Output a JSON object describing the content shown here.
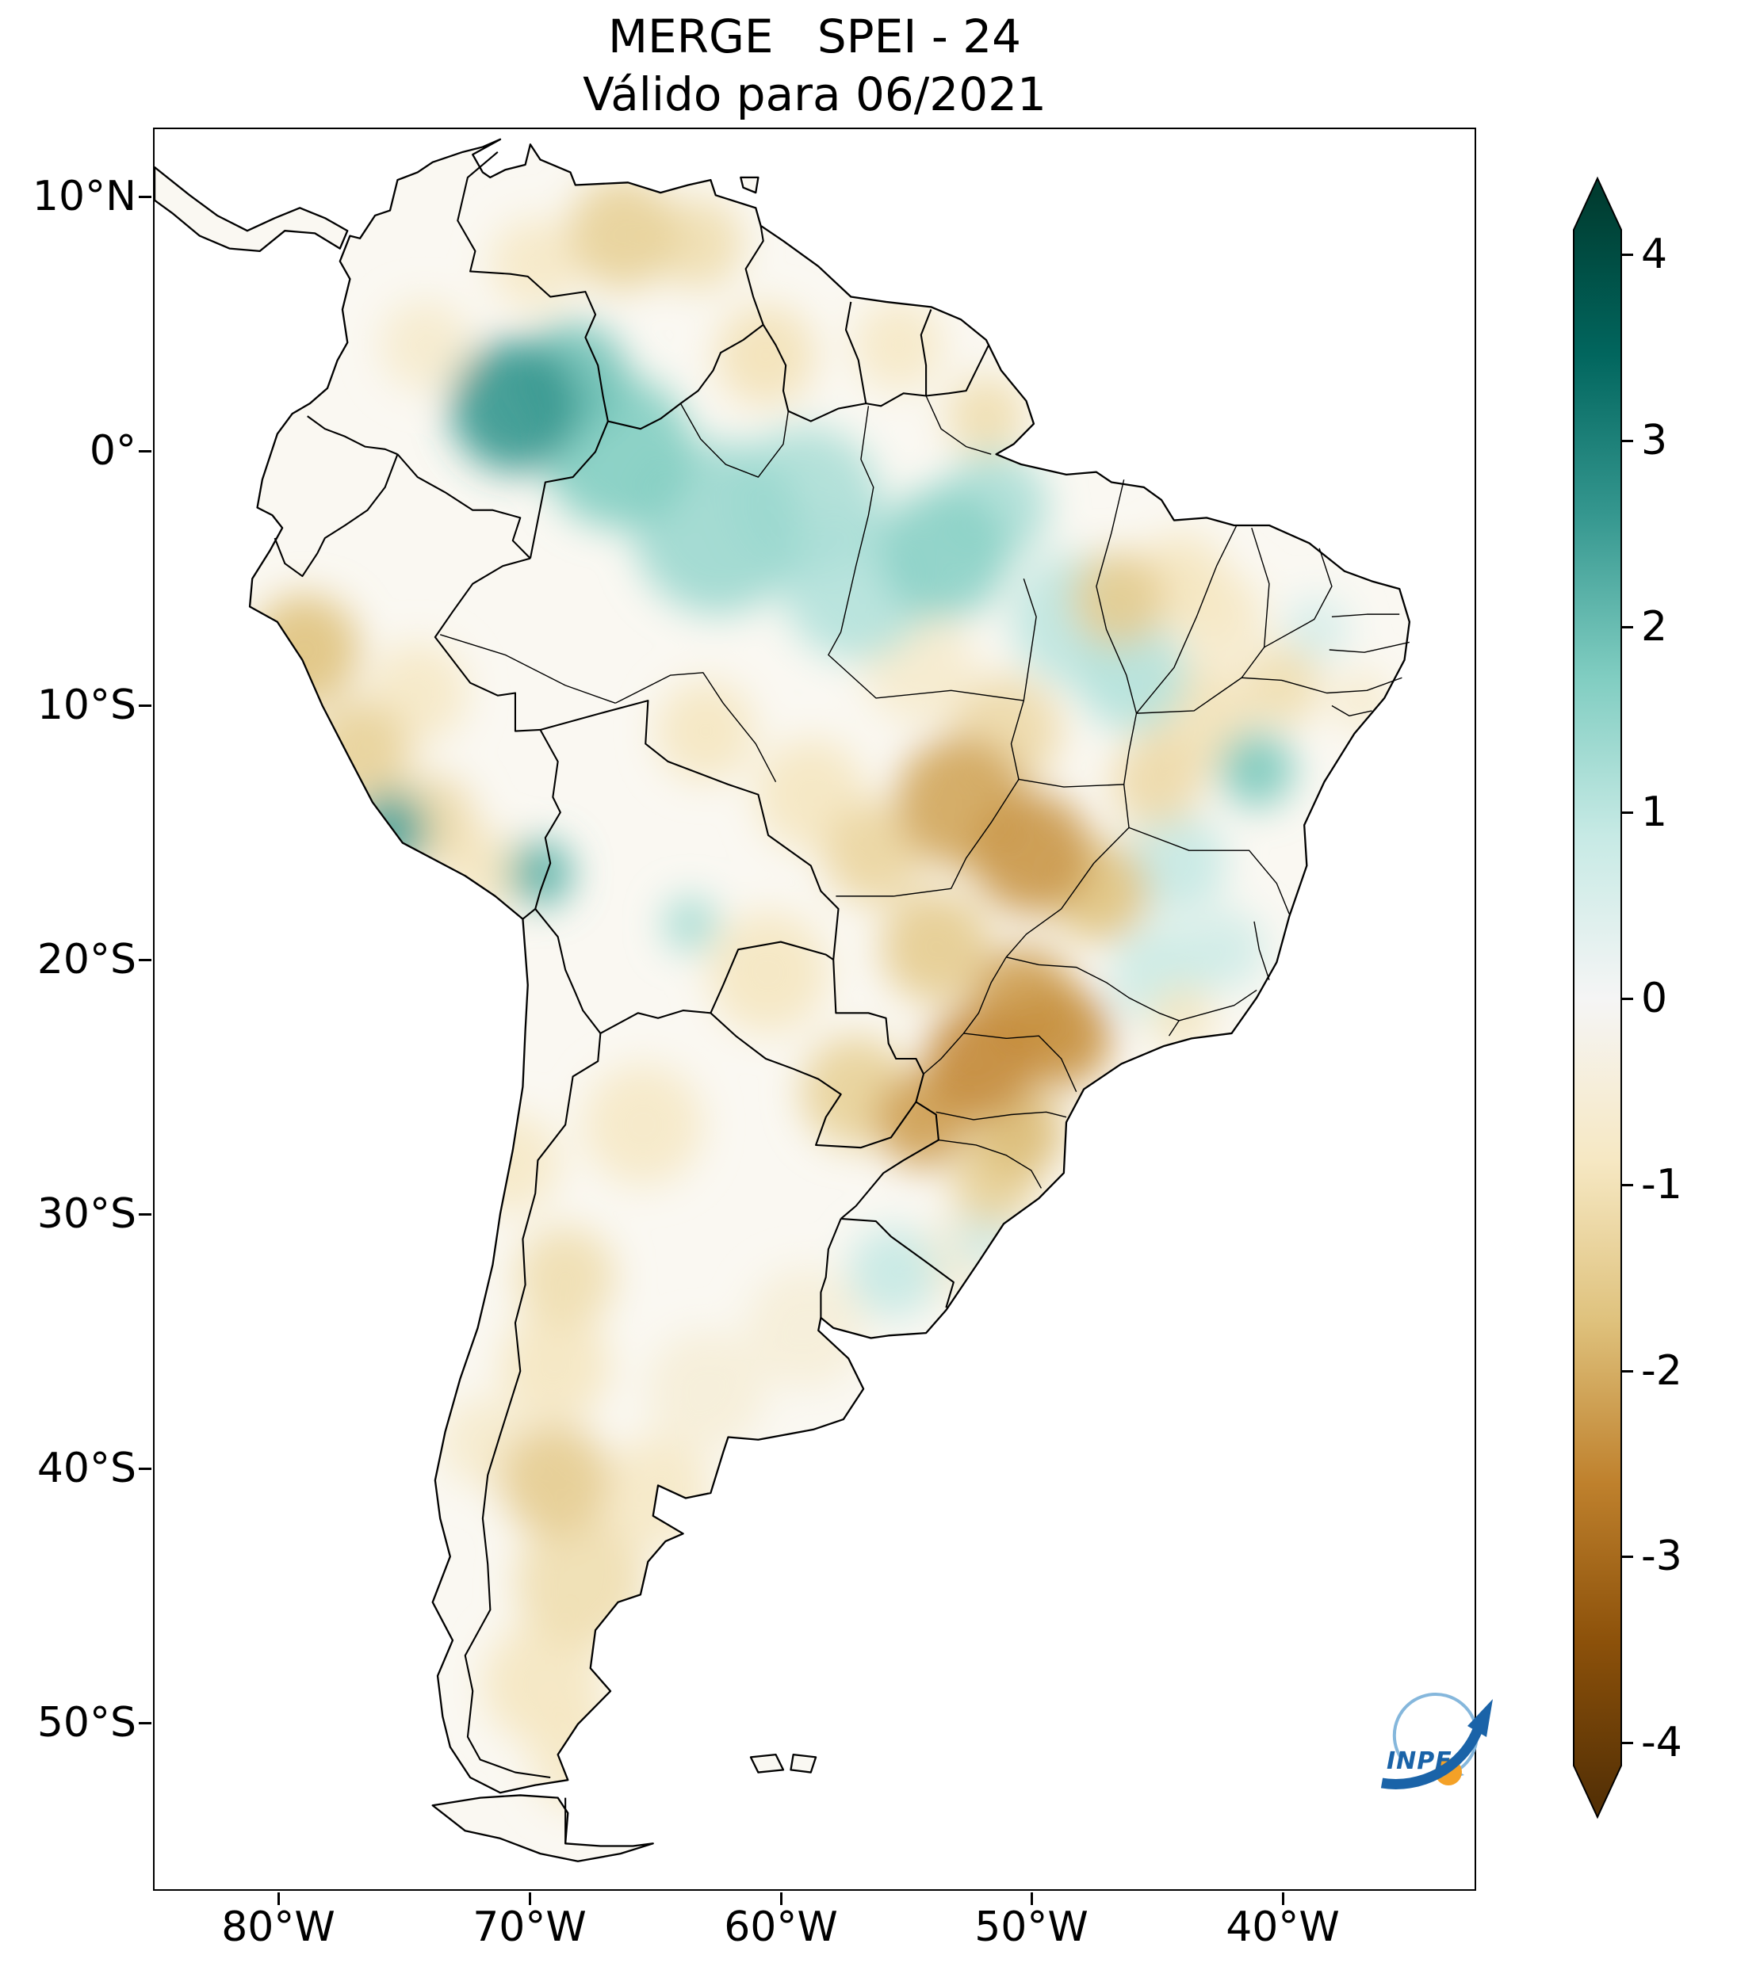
{
  "title": {
    "line1": "MERGE   SPEI - 24",
    "line2": "Válido para 06/2021"
  },
  "axes": {
    "y_ticks": [
      "10°N",
      "0°",
      "10°S",
      "20°S",
      "30°S",
      "40°S",
      "50°S"
    ],
    "x_ticks": [
      "80°W",
      "70°W",
      "60°W",
      "50°W",
      "40°W"
    ]
  },
  "colorbar": {
    "ticks": [
      "4",
      "3",
      "2",
      "1",
      "0",
      "-1",
      "-2",
      "-3",
      "-4"
    ]
  },
  "logo": {
    "text": "INPE"
  },
  "chart_data": {
    "type": "heatmap",
    "title": "MERGE SPEI - 24",
    "subtitle": "Válido para 06/2021",
    "index": "SPEI",
    "timescale_months": 24,
    "valid_for": "06/2021",
    "region": "South America",
    "projection": "equirectangular",
    "extent": {
      "lon_min": -85.0,
      "lon_max": -32.3,
      "lat_min": -56.6,
      "lat_max": 12.7
    },
    "colorbar": {
      "min": -4,
      "max": 4,
      "tick_values": [
        4,
        3,
        2,
        1,
        0,
        -1,
        -2,
        -3,
        -4
      ],
      "extended": true
    },
    "colormap": {
      "name": "BrBG",
      "stops": [
        [
          -4.33,
          "#543005"
        ],
        [
          -3.46,
          "#8c510a"
        ],
        [
          -2.6,
          "#bf812d"
        ],
        [
          -1.73,
          "#dfc27d"
        ],
        [
          -0.87,
          "#f6e8c3"
        ],
        [
          0.0,
          "#f5f5f5"
        ],
        [
          0.87,
          "#c7eae5"
        ],
        [
          1.73,
          "#80cdc1"
        ],
        [
          2.6,
          "#35978f"
        ],
        [
          3.46,
          "#01665e"
        ],
        [
          4.33,
          "#003c30"
        ]
      ]
    },
    "anomalies_format": [
      "lon",
      "lat",
      "spei",
      "radius_deg"
    ],
    "anomalies": [
      [
        -70.6,
        1.8,
        2.6,
        2.6
      ],
      [
        -68.3,
        2.9,
        1.9,
        2.2
      ],
      [
        -66.5,
        0.0,
        1.7,
        3.0
      ],
      [
        -62.5,
        -3.0,
        1.4,
        3.4
      ],
      [
        -59.0,
        -2.0,
        1.2,
        3.0
      ],
      [
        -57.0,
        -5.2,
        1.1,
        3.0
      ],
      [
        -53.5,
        -4.0,
        1.6,
        2.6
      ],
      [
        -51.5,
        -2.2,
        1.2,
        2.2
      ],
      [
        -48.2,
        -6.6,
        1.0,
        2.6
      ],
      [
        -46.0,
        -8.8,
        1.1,
        2.2
      ],
      [
        -44.2,
        -16.2,
        0.9,
        2.0
      ],
      [
        -41.0,
        -12.5,
        1.8,
        1.5
      ],
      [
        -75.6,
        -14.9,
        2.4,
        1.5
      ],
      [
        -69.6,
        -16.6,
        2.2,
        1.3
      ],
      [
        -63.6,
        -18.6,
        1.3,
        1.1
      ],
      [
        -44.8,
        -20.6,
        0.8,
        2.0
      ],
      [
        -42.2,
        -19.6,
        0.7,
        1.6
      ],
      [
        -55.5,
        -32.3,
        0.9,
        1.8
      ],
      [
        -51.8,
        -30.9,
        0.7,
        1.3
      ],
      [
        -38.6,
        -7.0,
        0.6,
        1.3
      ],
      [
        -79.0,
        -7.8,
        -1.7,
        2.2
      ],
      [
        -76.8,
        -11.8,
        -1.4,
        2.0
      ],
      [
        -74.0,
        -14.5,
        -1.2,
        1.8
      ],
      [
        -71.8,
        -16.5,
        -0.9,
        1.6
      ],
      [
        -74.5,
        -9.5,
        -0.8,
        2.0
      ],
      [
        -66.3,
        8.6,
        -1.4,
        2.2
      ],
      [
        -63.3,
        8.2,
        -1.1,
        1.8
      ],
      [
        -69.8,
        7.4,
        -0.8,
        1.8
      ],
      [
        -60.6,
        3.8,
        -1.0,
        2.0
      ],
      [
        -55.3,
        4.2,
        -0.8,
        1.8
      ],
      [
        -51.8,
        1.4,
        -1.1,
        1.6
      ],
      [
        -74.2,
        4.2,
        -0.7,
        1.8
      ],
      [
        -46.5,
        -5.8,
        -1.5,
        1.9
      ],
      [
        -44.0,
        -5.0,
        -0.9,
        1.8
      ],
      [
        -42.5,
        -6.5,
        -0.8,
        1.8
      ],
      [
        -40.0,
        -9.2,
        -1.1,
        1.6
      ],
      [
        -43.5,
        -10.5,
        -1.0,
        2.2
      ],
      [
        -45.0,
        -13.0,
        -1.2,
        1.8
      ],
      [
        -52.8,
        -13.8,
        -2.1,
        2.6
      ],
      [
        -50.0,
        -15.8,
        -2.3,
        2.4
      ],
      [
        -47.3,
        -17.3,
        -1.7,
        2.0
      ],
      [
        -53.8,
        -19.5,
        -1.5,
        2.2
      ],
      [
        -56.3,
        -15.8,
        -1.3,
        2.0
      ],
      [
        -58.8,
        -13.5,
        -0.9,
        2.2
      ],
      [
        -63.0,
        -11.0,
        -0.9,
        2.0
      ],
      [
        -51.0,
        -11.0,
        -1.2,
        2.2
      ],
      [
        -54.5,
        -8.5,
        -0.7,
        2.2
      ],
      [
        -50.3,
        -21.5,
        -2.2,
        2.0
      ],
      [
        -48.8,
        -23.0,
        -2.4,
        2.0
      ],
      [
        -52.0,
        -24.0,
        -2.5,
        2.2
      ],
      [
        -54.3,
        -26.3,
        -2.2,
        1.9
      ],
      [
        -50.5,
        -26.8,
        -1.8,
        1.8
      ],
      [
        -51.5,
        -28.8,
        -1.4,
        1.7
      ],
      [
        -57.0,
        -25.2,
        -1.4,
        2.2
      ],
      [
        -60.5,
        -20.5,
        -0.9,
        2.4
      ],
      [
        -65.5,
        -26.5,
        -0.8,
        2.4
      ],
      [
        -68.6,
        -32.5,
        -1.1,
        2.0
      ],
      [
        -70.8,
        -28.0,
        -0.8,
        2.0
      ],
      [
        -69.0,
        -36.0,
        -0.9,
        2.2
      ],
      [
        -69.0,
        -40.5,
        -1.5,
        2.2
      ],
      [
        -68.0,
        -44.5,
        -1.1,
        2.6
      ],
      [
        -69.5,
        -48.5,
        -0.9,
        2.4
      ],
      [
        -68.0,
        -51.5,
        -0.8,
        2.0
      ],
      [
        -71.8,
        -39.0,
        -0.7,
        1.8
      ],
      [
        -65.0,
        -41.0,
        -0.8,
        2.2
      ],
      [
        -63.0,
        -37.0,
        -0.5,
        2.4
      ],
      [
        -59.0,
        -34.5,
        -0.5,
        2.4
      ],
      [
        -44.0,
        -22.3,
        -0.9,
        1.3
      ],
      [
        -36.8,
        -9.8,
        -0.7,
        1.2
      ],
      [
        -53.0,
        -31.8,
        -0.6,
        1.6
      ]
    ]
  }
}
